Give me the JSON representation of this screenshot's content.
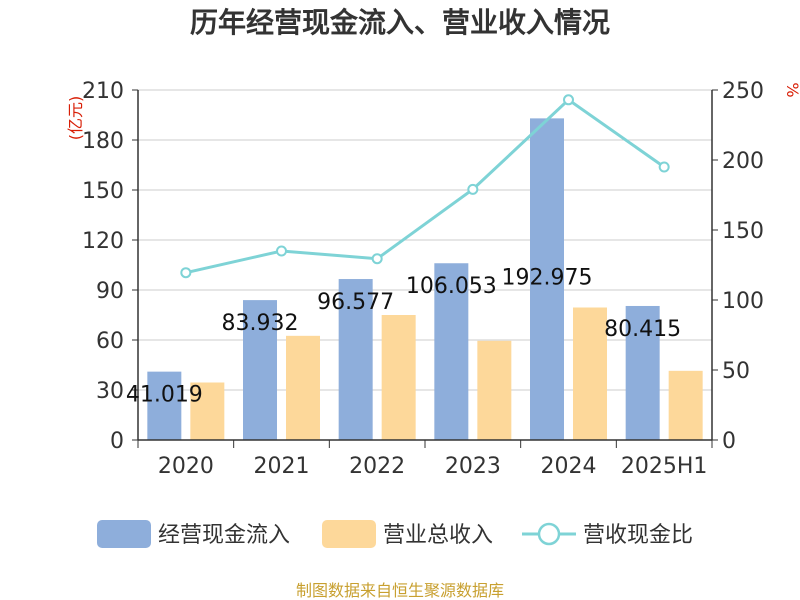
{
  "chart_data": {
    "type": "bar",
    "title": "历年经营现金流入、营业收入情况",
    "categories": [
      "2020",
      "2021",
      "2022",
      "2023",
      "2024",
      "2025H1"
    ],
    "y_left": {
      "unit": "(亿元)",
      "ylim": [
        0,
        210
      ],
      "ticks": [
        0,
        30,
        60,
        90,
        120,
        150,
        180,
        210
      ]
    },
    "y_right": {
      "unit": "%",
      "ylim": [
        0,
        250
      ],
      "ticks": [
        0,
        50,
        100,
        150,
        200,
        250
      ]
    },
    "series": [
      {
        "name": "经营现金流入",
        "axis": "left",
        "type": "bar",
        "color": "#8eaedb",
        "values": [
          41.019,
          83.932,
          96.577,
          106.053,
          192.975,
          80.415
        ],
        "labels": [
          "41.019",
          "83.932",
          "96.577",
          "106.053",
          "192.975",
          "80.415"
        ]
      },
      {
        "name": "营业总收入",
        "axis": "left",
        "type": "bar",
        "color": "#fdd89a",
        "values": [
          34.5,
          62.5,
          75.0,
          59.5,
          79.5,
          41.5
        ]
      },
      {
        "name": "营收现金比",
        "axis": "right",
        "type": "line",
        "color": "#7ed3d6",
        "values": [
          119.5,
          135.0,
          129.5,
          179.0,
          243.0,
          195.0
        ]
      }
    ],
    "grid": true,
    "legend_position": "bottom"
  },
  "footer": {
    "source": "制图数据来自恒生聚源数据库"
  }
}
